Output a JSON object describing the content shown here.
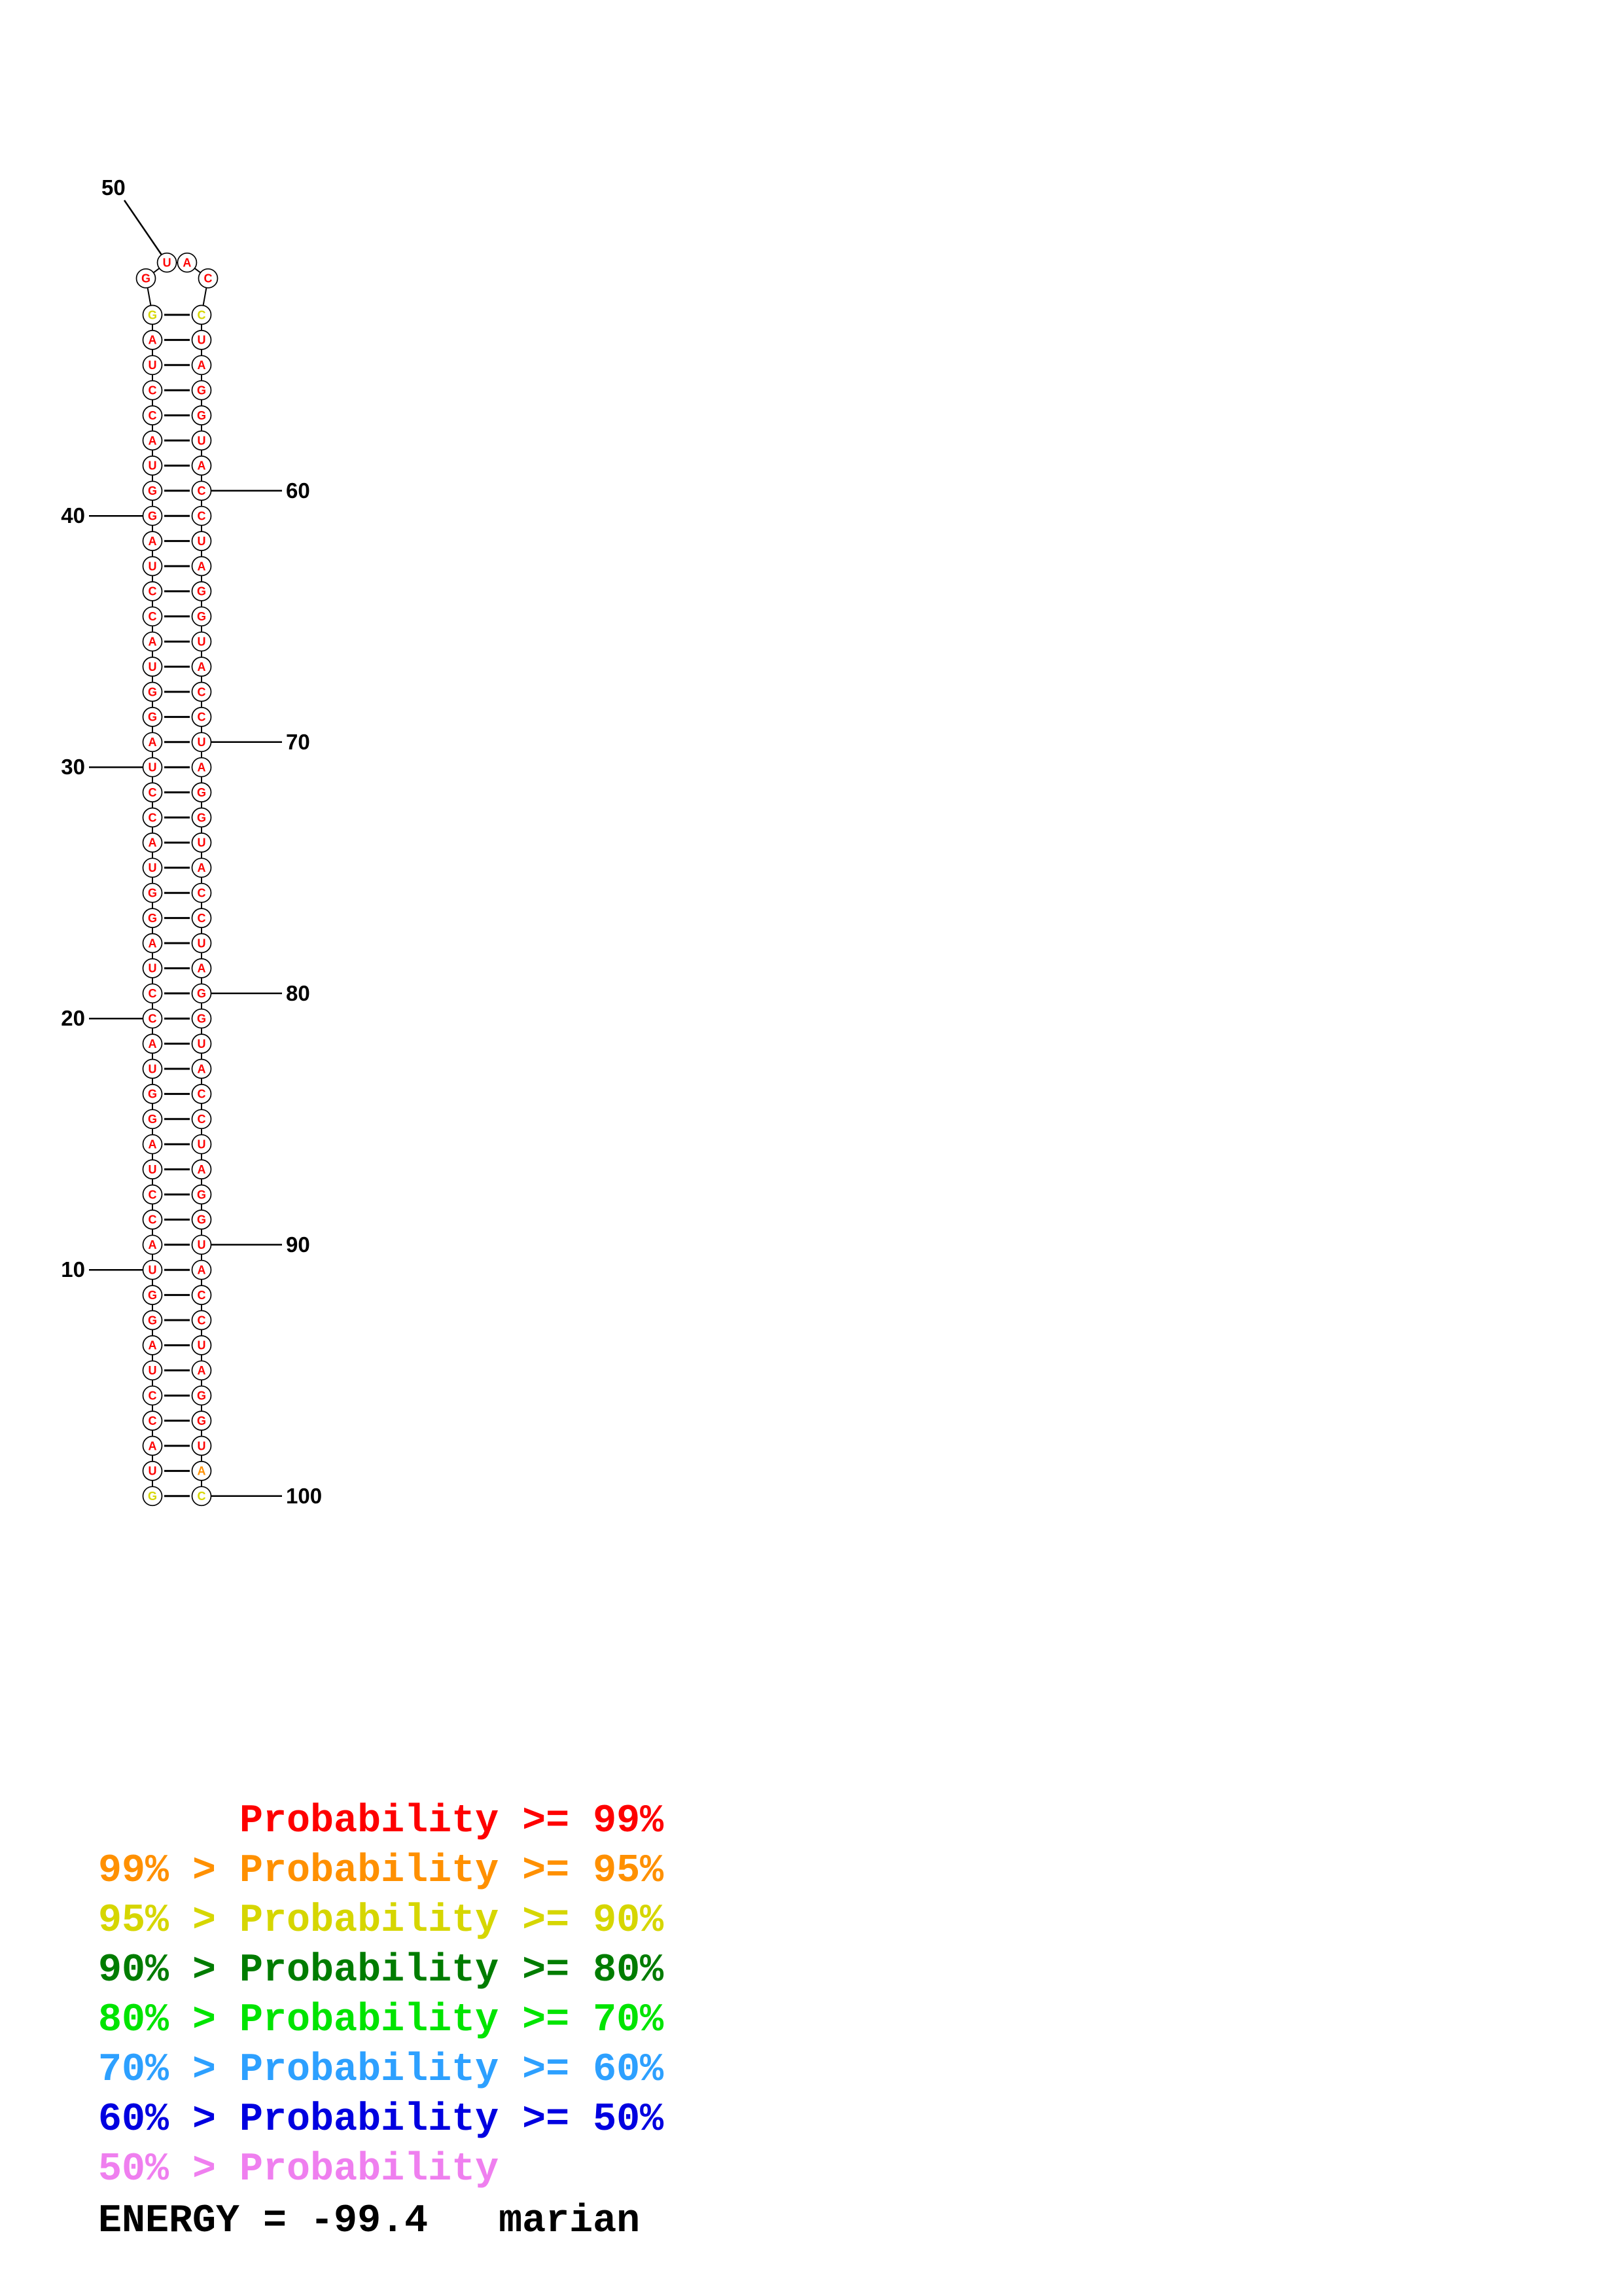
{
  "structure": {
    "name": "marian",
    "sequence": "GUACCUAGGUACCUAGGUACCUAGGUACCUAGGUACCUAGGUACCUAGGUACCUAGGUACCUAGGUACCUAGGUACCUAGGUACCUAGGUACCUAGGUAC",
    "length": 100,
    "stem_pairs": 48,
    "loop_positions": [
      49,
      50,
      51,
      52
    ],
    "default_probability_class": ">=99",
    "base_probability_class": {
      "1": "90-95",
      "48": "90-95",
      "53": "90-95",
      "99": "95-99",
      "100": "90-95"
    },
    "position_labels": [
      10,
      20,
      30,
      40,
      50,
      60,
      70,
      80,
      90,
      100
    ]
  },
  "colors": {
    ">=99": "#fe0000",
    "95-99": "#ff9000",
    "90-95": "#d6d600",
    "80-90": "#007c00",
    "70-80": "#00e400",
    "60-70": "#2da0ff",
    "50-60": "#0000e0",
    "<50": "#ef7fef"
  },
  "legend": {
    "entries": [
      {
        "text": "      Probability >= 99%",
        "color": "#fe0000"
      },
      {
        "text": "99% > Probability >= 95%",
        "color": "#ff9000"
      },
      {
        "text": "95% > Probability >= 90%",
        "color": "#d6d600"
      },
      {
        "text": "90% > Probability >= 80%",
        "color": "#007c00"
      },
      {
        "text": "80% > Probability >= 70%",
        "color": "#00e400"
      },
      {
        "text": "70% > Probability >= 60%",
        "color": "#2da0ff"
      },
      {
        "text": "60% > Probability >= 50%",
        "color": "#0000e0"
      },
      {
        "text": "50% > Probability",
        "color": "#ef7fef"
      }
    ]
  },
  "footer": {
    "energy_text": "ENERGY = -99.4   marian"
  }
}
